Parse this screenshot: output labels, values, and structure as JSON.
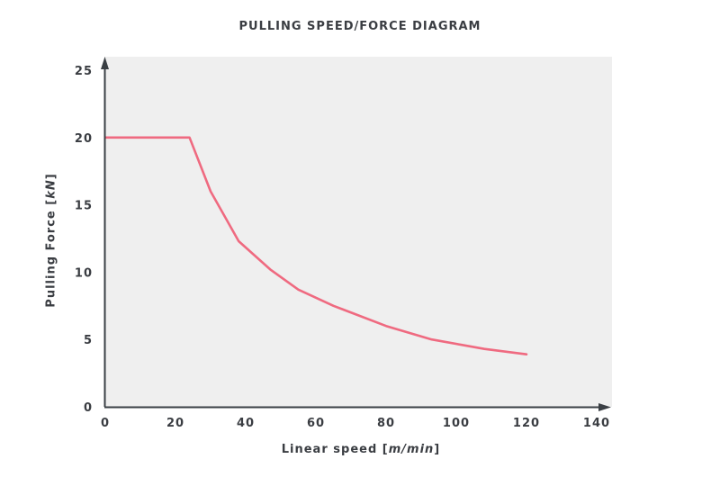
{
  "chart_data": {
    "type": "line",
    "title": "PULLING SPEED/FORCE DIAGRAM",
    "xlabel": "Linear speed [m/min]",
    "xlabel_parts": {
      "prefix": "Linear speed [",
      "unit": "m/min",
      "suffix": "]"
    },
    "ylabel": "Pulling Force [kN]",
    "ylabel_parts": {
      "prefix": "Pulling Force [",
      "unit": "kN",
      "suffix": "]"
    },
    "xlim": [
      0,
      140
    ],
    "ylim": [
      0,
      25
    ],
    "x_ticks": [
      0,
      20,
      40,
      60,
      80,
      100,
      120,
      140
    ],
    "y_ticks": [
      0,
      5,
      10,
      15,
      20,
      25
    ],
    "grid": false,
    "legend": null,
    "series": [
      {
        "name": "Pulling force",
        "color": "#ef6a80",
        "x": [
          0,
          24,
          30,
          38,
          47,
          55,
          65,
          80,
          93,
          108,
          120
        ],
        "y": [
          20,
          20,
          16,
          12.3,
          10.2,
          8.7,
          7.5,
          6.0,
          5.0,
          4.3,
          3.9
        ]
      }
    ]
  },
  "style": {
    "plot_background": "#efefef",
    "axis_color": "#3a3f44",
    "text_color": "#3a3d42"
  }
}
